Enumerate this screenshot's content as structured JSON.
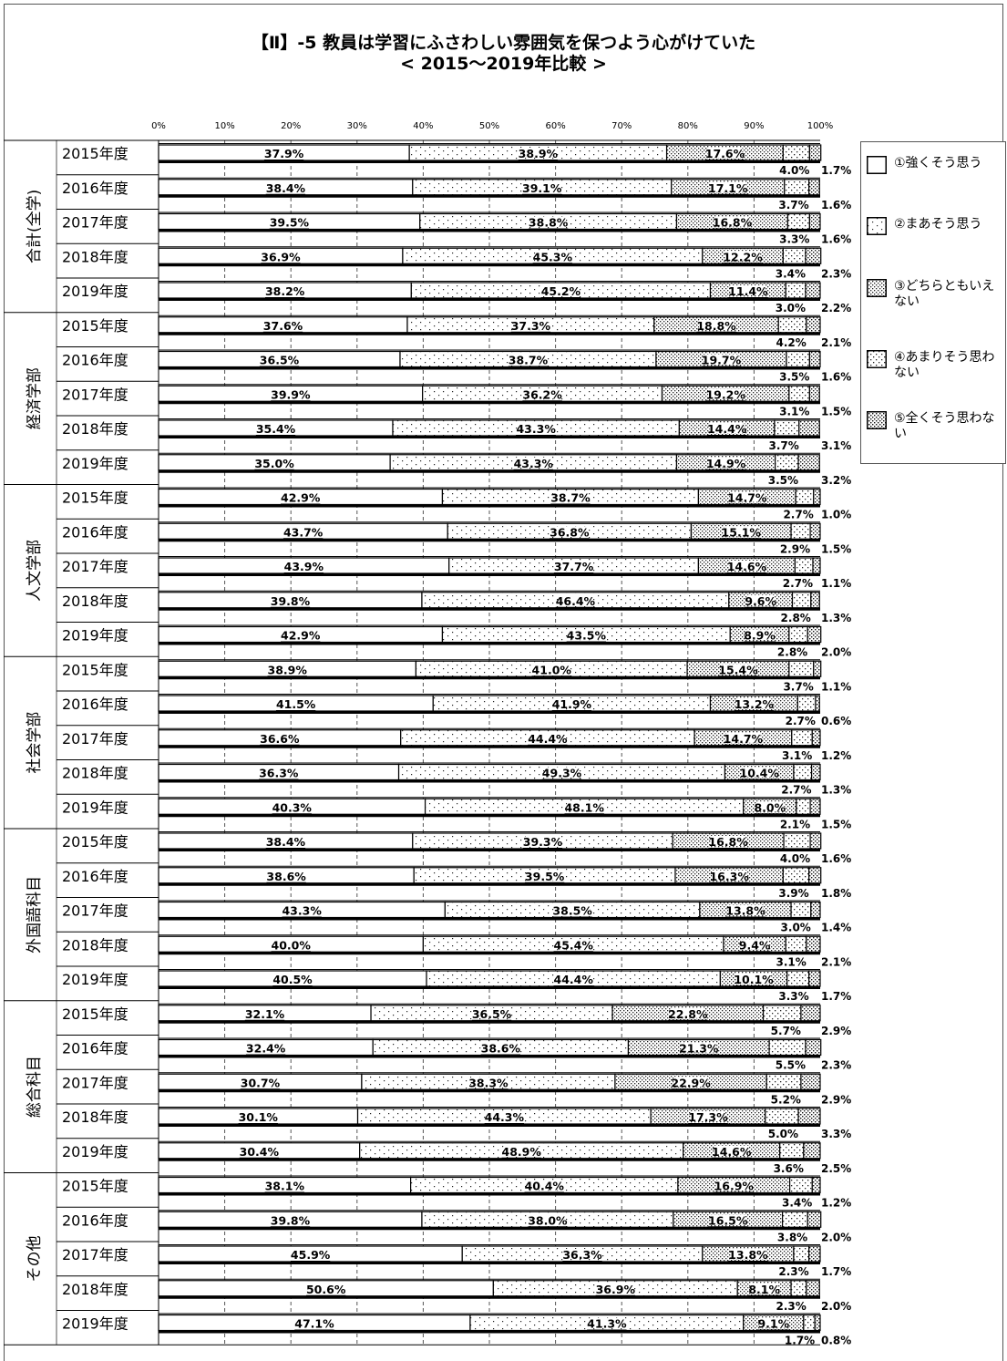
{
  "chart_data": {
    "type": "bar",
    "orientation": "horizontal",
    "stacked": "percent",
    "title": "【Ⅱ】-5 教員は学習にふさわしい雰囲気を保つよう心がけていた",
    "subtitle": "< 2015～2019年比較 >",
    "xlim": [
      0,
      100
    ],
    "x_tick_labels": [
      "0%",
      "10%",
      "20%",
      "30%",
      "40%",
      "50%",
      "60%",
      "70%",
      "80%",
      "90%",
      "100%"
    ],
    "grid": "vertical dashed",
    "legend_position": "right",
    "series_names": [
      "①強くそう思う",
      "②まあそう思う",
      "③どちらともいえない",
      "④あまりそう思わない",
      "⑤全くそう思わない"
    ],
    "groups": [
      {
        "name": "合計(全学)",
        "rows": [
          {
            "label": "2015年度",
            "values": [
              37.9,
              38.9,
              17.6,
              4.0,
              1.7
            ],
            "value_labels": [
              "37.9%",
              "38.9%",
              "17.6%",
              "4.0%",
              "1.7%"
            ]
          },
          {
            "label": "2016年度",
            "values": [
              38.4,
              39.1,
              17.1,
              3.7,
              1.6
            ],
            "value_labels": [
              "38.4%",
              "39.1%",
              "17.1%",
              "3.7%",
              "1.6%"
            ]
          },
          {
            "label": "2017年度",
            "values": [
              39.5,
              38.8,
              16.8,
              3.3,
              1.6
            ],
            "value_labels": [
              "39.5%",
              "38.8%",
              "16.8%",
              "3.3%",
              "1.6%"
            ]
          },
          {
            "label": "2018年度",
            "values": [
              36.9,
              45.3,
              12.2,
              3.4,
              2.3
            ],
            "value_labels": [
              "36.9%",
              "45.3%",
              "12.2%",
              "3.4%",
              "2.3%"
            ]
          },
          {
            "label": "2019年度",
            "values": [
              38.2,
              45.2,
              11.4,
              3.0,
              2.2
            ],
            "value_labels": [
              "38.2%",
              "45.2%",
              "11.4%",
              "3.0%",
              "2.2%"
            ]
          }
        ]
      },
      {
        "name": "経済学部",
        "rows": [
          {
            "label": "2015年度",
            "values": [
              37.6,
              37.3,
              18.8,
              4.2,
              2.1
            ],
            "value_labels": [
              "37.6%",
              "37.3%",
              "18.8%",
              "4.2%",
              "2.1%"
            ]
          },
          {
            "label": "2016年度",
            "values": [
              36.5,
              38.7,
              19.7,
              3.5,
              1.6
            ],
            "value_labels": [
              "36.5%",
              "38.7%",
              "19.7%",
              "3.5%",
              "1.6%"
            ]
          },
          {
            "label": "2017年度",
            "values": [
              39.9,
              36.2,
              19.2,
              3.1,
              1.5
            ],
            "value_labels": [
              "39.9%",
              "36.2%",
              "19.2%",
              "3.1%",
              "1.5%"
            ]
          },
          {
            "label": "2018年度",
            "values": [
              35.4,
              43.3,
              14.4,
              3.7,
              3.1
            ],
            "value_labels": [
              "35.4%",
              "43.3%",
              "14.4%",
              "3.7%",
              "3.1%"
            ]
          },
          {
            "label": "2019年度",
            "values": [
              35.0,
              43.3,
              14.9,
              3.5,
              3.2
            ],
            "value_labels": [
              "35.0%",
              "43.3%",
              "14.9%",
              "3.5%",
              "3.2%"
            ]
          }
        ]
      },
      {
        "name": "人文学部",
        "rows": [
          {
            "label": "2015年度",
            "values": [
              42.9,
              38.7,
              14.7,
              2.7,
              1.0
            ],
            "value_labels": [
              "42.9%",
              "38.7%",
              "14.7%",
              "2.7%",
              "1.0%"
            ]
          },
          {
            "label": "2016年度",
            "values": [
              43.7,
              36.8,
              15.1,
              2.9,
              1.5
            ],
            "value_labels": [
              "43.7%",
              "36.8%",
              "15.1%",
              "2.9%",
              "1.5%"
            ]
          },
          {
            "label": "2017年度",
            "values": [
              43.9,
              37.7,
              14.6,
              2.7,
              1.1
            ],
            "value_labels": [
              "43.9%",
              "37.7%",
              "14.6%",
              "2.7%",
              "1.1%"
            ]
          },
          {
            "label": "2018年度",
            "values": [
              39.8,
              46.4,
              9.6,
              2.8,
              1.3
            ],
            "value_labels": [
              "39.8%",
              "46.4%",
              "9.6%",
              "2.8%",
              "1.3%"
            ]
          },
          {
            "label": "2019年度",
            "values": [
              42.9,
              43.5,
              8.9,
              2.8,
              2.0
            ],
            "value_labels": [
              "42.9%",
              "43.5%",
              "8.9%",
              "2.8%",
              "2.0%"
            ]
          }
        ]
      },
      {
        "name": "社会学部",
        "rows": [
          {
            "label": "2015年度",
            "values": [
              38.9,
              41.0,
              15.4,
              3.7,
              1.1
            ],
            "value_labels": [
              "38.9%",
              "41.0%",
              "15.4%",
              "3.7%",
              "1.1%"
            ]
          },
          {
            "label": "2016年度",
            "values": [
              41.5,
              41.9,
              13.2,
              2.7,
              0.6
            ],
            "value_labels": [
              "41.5%",
              "41.9%",
              "13.2%",
              "2.7%",
              "0.6%"
            ]
          },
          {
            "label": "2017年度",
            "values": [
              36.6,
              44.4,
              14.7,
              3.1,
              1.2
            ],
            "value_labels": [
              "36.6%",
              "44.4%",
              "14.7%",
              "3.1%",
              "1.2%"
            ]
          },
          {
            "label": "2018年度",
            "values": [
              36.3,
              49.3,
              10.4,
              2.7,
              1.3
            ],
            "value_labels": [
              "36.3%",
              "49.3%",
              "10.4%",
              "2.7%",
              "1.3%"
            ]
          },
          {
            "label": "2019年度",
            "values": [
              40.3,
              48.1,
              8.0,
              2.1,
              1.5
            ],
            "value_labels": [
              "40.3%",
              "48.1%",
              "8.0%",
              "2.1%",
              "1.5%"
            ]
          }
        ]
      },
      {
        "name": "外国語科目",
        "rows": [
          {
            "label": "2015年度",
            "values": [
              38.4,
              39.3,
              16.8,
              4.0,
              1.6
            ],
            "value_labels": [
              "38.4%",
              "39.3%",
              "16.8%",
              "4.0%",
              "1.6%"
            ]
          },
          {
            "label": "2016年度",
            "values": [
              38.6,
              39.5,
              16.3,
              3.9,
              1.8
            ],
            "value_labels": [
              "38.6%",
              "39.5%",
              "16.3%",
              "3.9%",
              "1.8%"
            ]
          },
          {
            "label": "2017年度",
            "values": [
              43.3,
              38.5,
              13.8,
              3.0,
              1.4
            ],
            "value_labels": [
              "43.3%",
              "38.5%",
              "13.8%",
              "3.0%",
              "1.4%"
            ]
          },
          {
            "label": "2018年度",
            "values": [
              40.0,
              45.4,
              9.4,
              3.1,
              2.1
            ],
            "value_labels": [
              "40.0%",
              "45.4%",
              "9.4%",
              "3.1%",
              "2.1%"
            ]
          },
          {
            "label": "2019年度",
            "values": [
              40.5,
              44.4,
              10.1,
              3.3,
              1.7
            ],
            "value_labels": [
              "40.5%",
              "44.4%",
              "10.1%",
              "3.3%",
              "1.7%"
            ]
          }
        ]
      },
      {
        "name": "総合科目",
        "rows": [
          {
            "label": "2015年度",
            "values": [
              32.1,
              36.5,
              22.8,
              5.7,
              2.9
            ],
            "value_labels": [
              "32.1%",
              "36.5%",
              "22.8%",
              "5.7%",
              "2.9%"
            ]
          },
          {
            "label": "2016年度",
            "values": [
              32.4,
              38.6,
              21.3,
              5.5,
              2.3
            ],
            "value_labels": [
              "32.4%",
              "38.6%",
              "21.3%",
              "5.5%",
              "2.3%"
            ]
          },
          {
            "label": "2017年度",
            "values": [
              30.7,
              38.3,
              22.9,
              5.2,
              2.9
            ],
            "value_labels": [
              "30.7%",
              "38.3%",
              "22.9%",
              "5.2%",
              "2.9%"
            ]
          },
          {
            "label": "2018年度",
            "values": [
              30.1,
              44.3,
              17.3,
              5.0,
              3.3
            ],
            "value_labels": [
              "30.1%",
              "44.3%",
              "17.3%",
              "5.0%",
              "3.3%"
            ]
          },
          {
            "label": "2019年度",
            "values": [
              30.4,
              48.9,
              14.6,
              3.6,
              2.5
            ],
            "value_labels": [
              "30.4%",
              "48.9%",
              "14.6%",
              "3.6%",
              "2.5%"
            ]
          }
        ]
      },
      {
        "name": "その他",
        "rows": [
          {
            "label": "2015年度",
            "values": [
              38.1,
              40.4,
              16.9,
              3.4,
              1.2
            ],
            "value_labels": [
              "38.1%",
              "40.4%",
              "16.9%",
              "3.4%",
              "1.2%"
            ]
          },
          {
            "label": "2016年度",
            "values": [
              39.8,
              38.0,
              16.5,
              3.8,
              2.0
            ],
            "value_labels": [
              "39.8%",
              "38.0%",
              "16.5%",
              "3.8%",
              "2.0%"
            ]
          },
          {
            "label": "2017年度",
            "values": [
              45.9,
              36.3,
              13.8,
              2.3,
              1.7
            ],
            "value_labels": [
              "45.9%",
              "36.3%",
              "13.8%",
              "2.3%",
              "1.7%"
            ]
          },
          {
            "label": "2018年度",
            "values": [
              50.6,
              36.9,
              8.1,
              2.3,
              2.0
            ],
            "value_labels": [
              "50.6%",
              "36.9%",
              "8.1%",
              "2.3%",
              "2.0%"
            ]
          },
          {
            "label": "2019年度",
            "values": [
              47.1,
              41.3,
              9.1,
              1.7,
              0.8
            ],
            "value_labels": [
              "47.1%",
              "41.3%",
              "9.1%",
              "1.7%",
              "0.8%"
            ]
          }
        ]
      }
    ]
  },
  "legend": {
    "items": [
      {
        "label": "①強くそう思う",
        "pattern": "none"
      },
      {
        "label": "②まあそう思う",
        "pattern": "sparse-dots"
      },
      {
        "label": "③どちらともいえない",
        "pattern": "zigzag-dots"
      },
      {
        "label": "④あまりそう思わない",
        "pattern": "medium-dots"
      },
      {
        "label": "⑤全くそう思わない",
        "pattern": "dense-dots"
      }
    ]
  },
  "colors": {
    "background": "#ffffff",
    "ink": "#000000",
    "grid": "#555555"
  }
}
